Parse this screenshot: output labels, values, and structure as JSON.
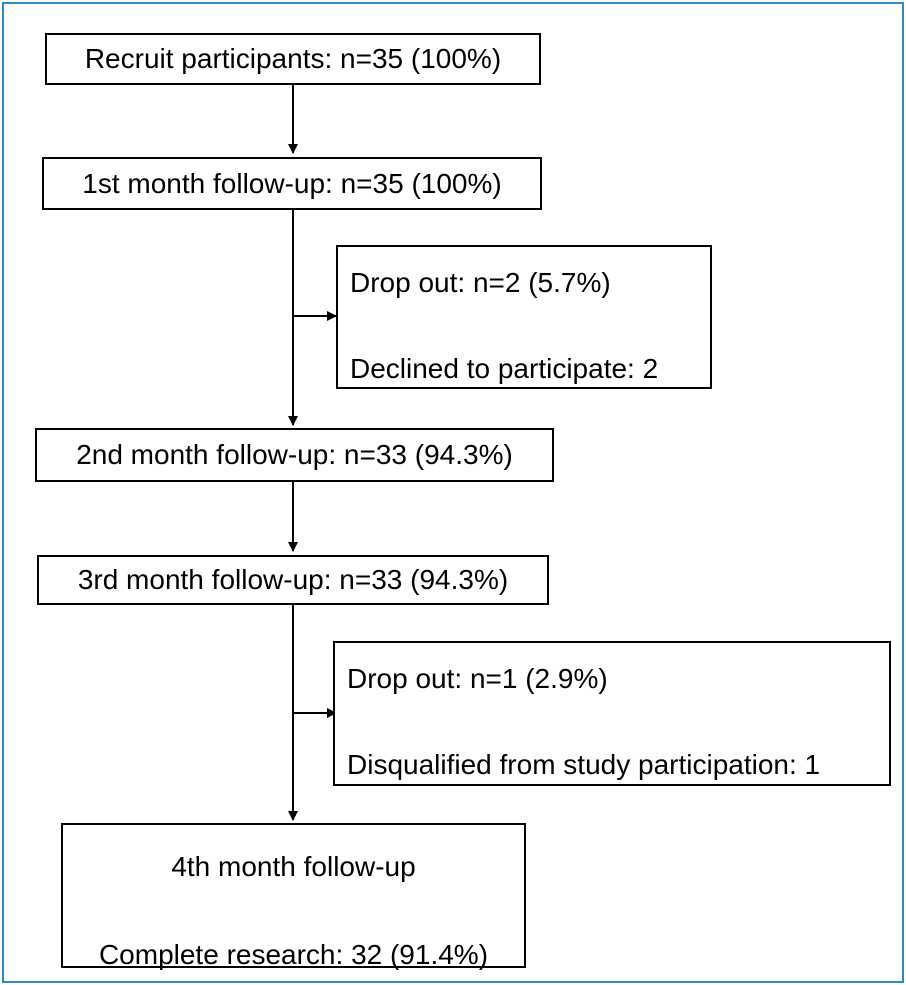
{
  "steps": {
    "recruit": "Recruit participants: n=35 (100%)",
    "month1": "1st month follow-up: n=35 (100%)",
    "dropout1_title": "Drop out: n=2 (5.7%)",
    "dropout1_reason": "Declined to participate: 2",
    "month2": "2nd month follow-up: n=33 (94.3%)",
    "month3": "3rd month follow-up: n=33 (94.3%)",
    "dropout2_title": "Drop out: n=1 (2.9%)",
    "dropout2_reason": "Disqualified from study participation: 1",
    "month4_title": "4th month follow-up",
    "month4_result": "Complete research: 32 (91.4%)"
  },
  "colors": {
    "frame": "#2b8cc4",
    "stroke": "#000000"
  }
}
